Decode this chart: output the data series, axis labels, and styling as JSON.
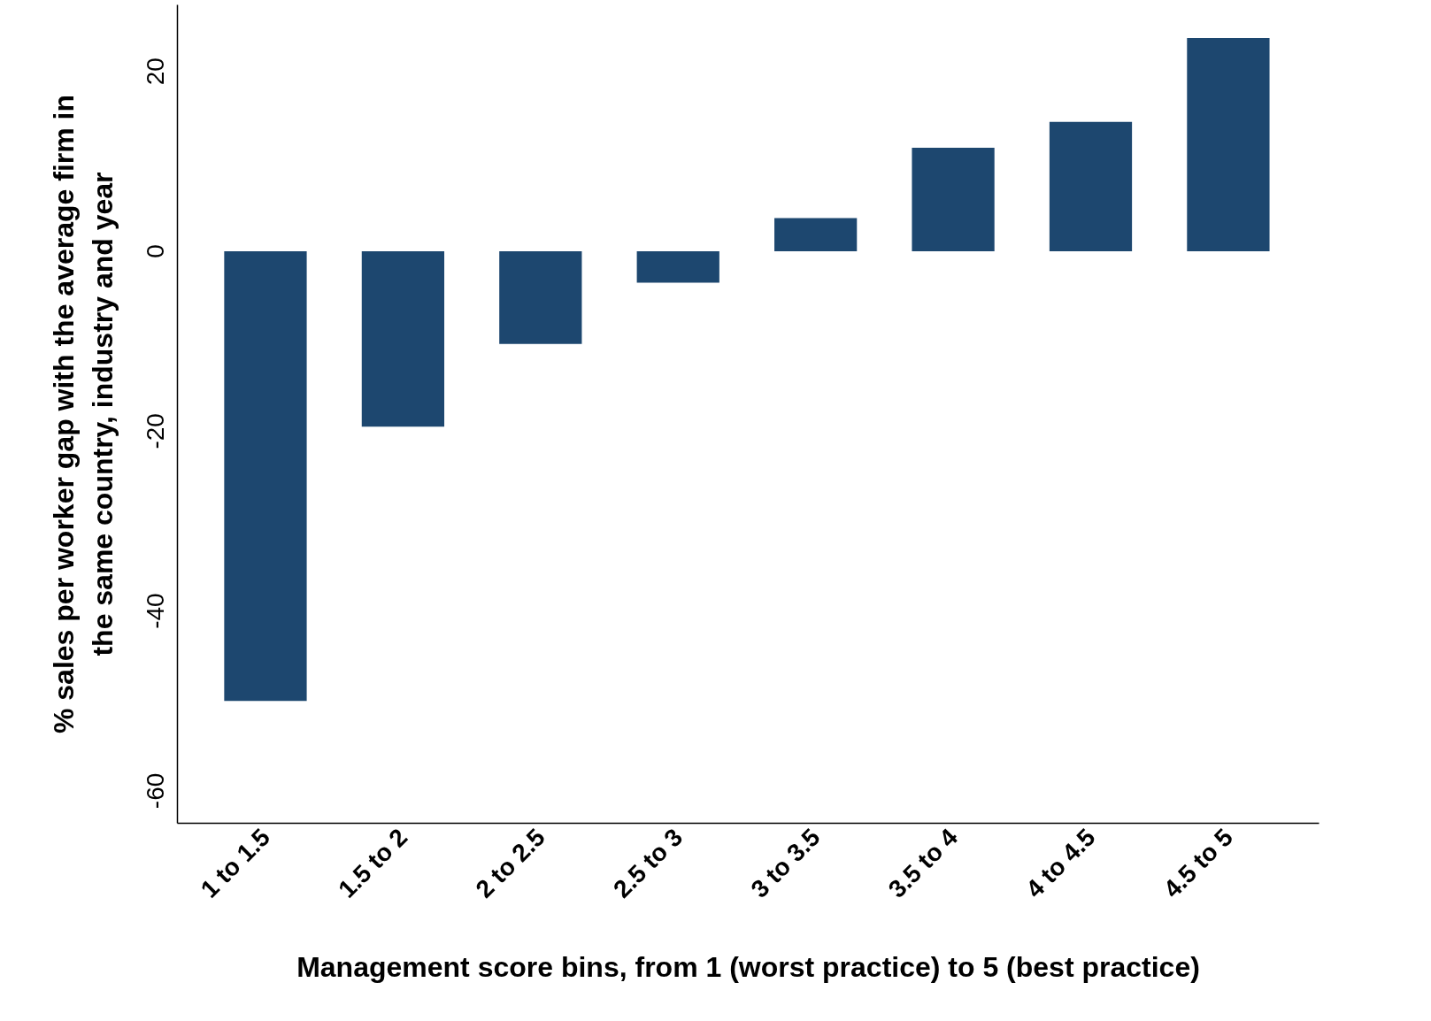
{
  "chart_data": {
    "type": "bar",
    "xlabel": "Management score bins, from 1 (worst practice) to 5 (best practice)",
    "ylabel": "% sales per worker gap with the average firm in\nthe same country, industry and year",
    "categories": [
      "1 to 1.5",
      "1.5 to 2",
      "2 to 2.5",
      "2.5 to 3",
      "3 to 3.5",
      "3.5 to 4",
      "4 to 4.5",
      "4.5 to 5"
    ],
    "values": [
      -50,
      -19.5,
      -10.3,
      -3.5,
      3.7,
      11.5,
      14.4,
      23.7
    ],
    "color": "#1d476f",
    "ylim": [
      -63.6,
      27.4
    ],
    "yticks": [
      -60,
      -40,
      -20,
      0,
      20
    ],
    "grid": false
  }
}
